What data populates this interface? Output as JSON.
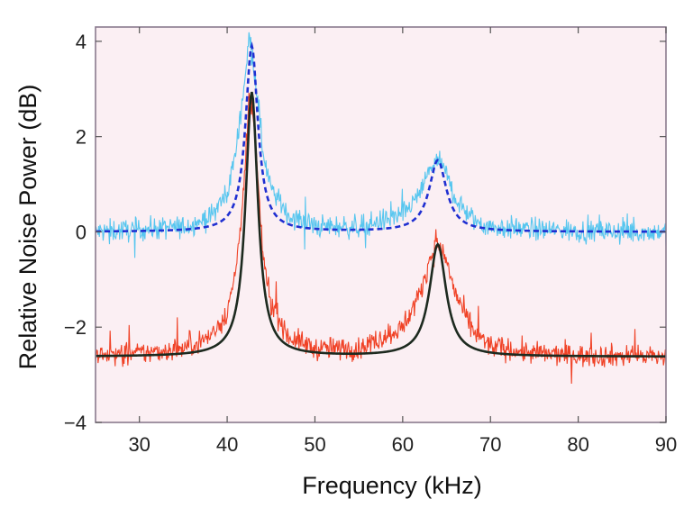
{
  "chart_data": {
    "type": "line",
    "title": "",
    "xlabel": "Frequency (kHz)",
    "ylabel": "Relative Noise Power (dB)",
    "xlim": [
      25,
      90
    ],
    "ylim": [
      -4,
      4.3
    ],
    "xticks": [
      30,
      40,
      50,
      60,
      70,
      80,
      90
    ],
    "yticks": [
      -4,
      -2,
      0,
      2,
      4
    ],
    "grid": false,
    "legend": "none",
    "plot_background": "#fbeff3",
    "series": [
      {
        "kind": "noisy-measurement",
        "color": "#45c1ee",
        "baseline_db": 0.0,
        "x": [
          25,
          30,
          35,
          38,
          40,
          41,
          42,
          42.5,
          43,
          43.5,
          44,
          45,
          47,
          50,
          55,
          60,
          62,
          63,
          64,
          65,
          66,
          68,
          70,
          75,
          80,
          85,
          90
        ],
        "y": [
          0.0,
          0.05,
          0.1,
          0.3,
          0.8,
          1.7,
          3.2,
          4.1,
          3.6,
          2.8,
          1.8,
          0.9,
          0.35,
          0.12,
          0.1,
          0.35,
          0.8,
          1.3,
          1.5,
          1.2,
          0.7,
          0.25,
          0.1,
          0.05,
          0.02,
          0.0,
          0.0
        ]
      },
      {
        "kind": "lorentzian-fit",
        "color": "#1f2fd1",
        "style": "dashed",
        "baseline_db": 0.0,
        "peaks": [
          {
            "center_khz": 42.8,
            "height_db": 3.9,
            "hwhm_khz": 0.85
          },
          {
            "center_khz": 64.0,
            "height_db": 1.5,
            "hwhm_khz": 1.2
          }
        ]
      },
      {
        "kind": "noisy-measurement",
        "color": "#ee2f10",
        "baseline_db": -2.6,
        "x": [
          25,
          30,
          35,
          38,
          40,
          41,
          42,
          42.5,
          43,
          43.5,
          44,
          45,
          47,
          50,
          55,
          60,
          62,
          63,
          64,
          65,
          66,
          68,
          70,
          75,
          80,
          85,
          90
        ],
        "y": [
          -2.6,
          -2.55,
          -2.45,
          -2.2,
          -1.7,
          -0.8,
          1.1,
          2.8,
          2.4,
          1.1,
          -0.4,
          -1.5,
          -2.2,
          -2.45,
          -2.45,
          -2.0,
          -1.3,
          -0.6,
          -0.25,
          -0.6,
          -1.3,
          -2.1,
          -2.4,
          -2.55,
          -2.6,
          -2.6,
          -2.62
        ]
      },
      {
        "kind": "lorentzian-fit",
        "color": "#1d2a1f",
        "style": "solid",
        "baseline_db": -2.62,
        "peaks": [
          {
            "center_khz": 42.8,
            "height_db": 5.55,
            "hwhm_khz": 0.85
          },
          {
            "center_khz": 64.0,
            "height_db": 2.35,
            "hwhm_khz": 1.15
          }
        ]
      }
    ]
  }
}
